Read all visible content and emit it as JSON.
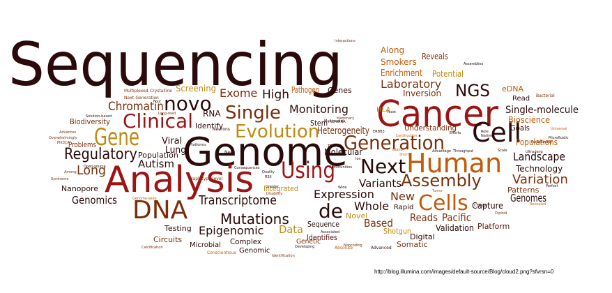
{
  "palette": {
    "dark": "#2a0a0a",
    "crimson": "#9c1515",
    "brown": "#7a2f0a",
    "orange": "#c25a0a",
    "gold": "#c08a12",
    "maroon": "#5a1010"
  },
  "words": [
    {
      "text": "Sequencing",
      "c": "dark"
    },
    {
      "text": "Genome",
      "c": "dark"
    },
    {
      "text": "Cancer",
      "c": "crimson"
    },
    {
      "text": "Analysis",
      "c": "crimson"
    },
    {
      "text": "DNA",
      "c": "brown"
    },
    {
      "text": "Human",
      "c": "orange"
    },
    {
      "text": "Cell",
      "c": "dark"
    },
    {
      "text": "Gene",
      "c": "gold"
    },
    {
      "text": "Next",
      "c": "dark"
    },
    {
      "text": "Using",
      "c": "crimson"
    },
    {
      "text": "Generation",
      "c": "brown"
    },
    {
      "text": "Clinical",
      "c": "crimson"
    },
    {
      "text": "Evolution",
      "c": "gold"
    },
    {
      "text": "Single",
      "c": "brown"
    },
    {
      "text": "Cells",
      "c": "orange"
    },
    {
      "text": "Assembly",
      "c": "brown"
    },
    {
      "text": "novo",
      "c": "dark"
    },
    {
      "text": "de",
      "c": "dark"
    },
    {
      "text": "Regulatory",
      "c": "dark"
    },
    {
      "text": "Mutations",
      "c": "dark"
    },
    {
      "text": "NGS",
      "c": "dark"
    },
    {
      "text": "Chromatin",
      "c": "brown"
    },
    {
      "text": "Exome",
      "c": "brown"
    },
    {
      "text": "High",
      "c": "dark"
    },
    {
      "text": "Laboratory",
      "c": "brown"
    },
    {
      "text": "Variation",
      "c": "brown"
    },
    {
      "text": "Transcriptome",
      "c": "dark"
    },
    {
      "text": "Epigenomic",
      "c": "dark"
    },
    {
      "text": "Landscape",
      "c": "dark"
    },
    {
      "text": "Monitoring",
      "c": "dark"
    },
    {
      "text": "Expression",
      "c": "dark"
    },
    {
      "text": "Whole",
      "c": "dark"
    },
    {
      "text": "Variants",
      "c": "dark"
    },
    {
      "text": "Long",
      "c": "brown"
    },
    {
      "text": "Autism",
      "c": "dark"
    },
    {
      "text": "Genomics",
      "c": "dark"
    },
    {
      "text": "Reads",
      "c": "brown"
    },
    {
      "text": "Pacific",
      "c": "brown"
    },
    {
      "text": "Based",
      "c": "brown"
    },
    {
      "text": "Genomes",
      "c": "dark"
    },
    {
      "text": "Data",
      "c": "gold"
    },
    {
      "text": "New",
      "c": "brown"
    },
    {
      "text": "Heterogeneity",
      "c": "brown"
    },
    {
      "text": "Molecular",
      "c": "dark"
    },
    {
      "text": "Population",
      "c": "dark"
    },
    {
      "text": "Viral",
      "c": "dark"
    },
    {
      "text": "Lung",
      "c": "dark"
    },
    {
      "text": "Single-molecule",
      "c": "dark"
    },
    {
      "text": "Inversion",
      "c": "brown"
    },
    {
      "text": "Enrichment",
      "c": "orange"
    },
    {
      "text": "Smokers",
      "c": "orange"
    },
    {
      "text": "Reveals",
      "c": "brown"
    },
    {
      "text": "Along",
      "c": "orange"
    },
    {
      "text": "Potential",
      "c": "gold"
    },
    {
      "text": "Screening",
      "c": "gold"
    },
    {
      "text": "Pathogen",
      "c": "orange"
    },
    {
      "text": "Genes",
      "c": "dark"
    },
    {
      "text": "RNA",
      "c": "dark"
    },
    {
      "text": "Stem",
      "c": "dark"
    },
    {
      "text": "Identify",
      "c": "dark"
    },
    {
      "text": "Understanding",
      "c": "brown"
    },
    {
      "text": "Bioscience",
      "c": "orange"
    },
    {
      "text": "Populations",
      "c": "orange"
    },
    {
      "text": "Goals",
      "c": "dark"
    },
    {
      "text": "Technology",
      "c": "dark"
    },
    {
      "text": "Patterns",
      "c": "brown"
    },
    {
      "text": "Capture",
      "c": "dark"
    },
    {
      "text": "Platform",
      "c": "maroon"
    },
    {
      "text": "Validation",
      "c": "dark"
    },
    {
      "text": "Digital",
      "c": "dark"
    },
    {
      "text": "Somatic",
      "c": "brown"
    },
    {
      "text": "Shotgun",
      "c": "gold"
    },
    {
      "text": "Novel",
      "c": "gold"
    },
    {
      "text": "Sequence",
      "c": "dark"
    },
    {
      "text": "Identifies",
      "c": "maroon"
    },
    {
      "text": "Genetic",
      "c": "brown"
    },
    {
      "text": "Genomic",
      "c": "dark"
    },
    {
      "text": "Complex",
      "c": "dark"
    },
    {
      "text": "Microbial",
      "c": "dark"
    },
    {
      "text": "Circuits",
      "c": "brown"
    },
    {
      "text": "Testing",
      "c": "dark"
    },
    {
      "text": "Integrated",
      "c": "gold"
    },
    {
      "text": "Rapid",
      "c": "dark"
    },
    {
      "text": "Nanopore",
      "c": "dark"
    },
    {
      "text": "Problems",
      "c": "brown"
    },
    {
      "text": "Biodiversity",
      "c": "brown"
    },
    {
      "text": "Read",
      "c": "dark"
    },
    {
      "text": "eDNA",
      "c": "orange"
    },
    {
      "text": "HLA",
      "c": "gold"
    },
    {
      "text": "Multiplexed",
      "c": "brown"
    },
    {
      "text": "Crystalline",
      "c": "brown"
    },
    {
      "text": "Next-Generation",
      "c": "brown"
    },
    {
      "text": "Four",
      "c": "dark"
    },
    {
      "text": "Solution-based",
      "c": "dark"
    },
    {
      "text": "Long-read",
      "c": "brown"
    },
    {
      "text": "Advances",
      "c": "brown"
    },
    {
      "text": "Overwhelmingly",
      "c": "brown"
    },
    {
      "text": "PIK3CA",
      "c": "brown"
    },
    {
      "text": "Open-source",
      "c": "dark"
    },
    {
      "text": "Among",
      "c": "brown"
    },
    {
      "text": "Syndrome",
      "c": "brown"
    },
    {
      "text": "Genome-wide",
      "c": "orange"
    },
    {
      "text": "Haplotype-level",
      "c": "brown"
    },
    {
      "text": "Consequences",
      "c": "dark"
    },
    {
      "text": "Neurons",
      "c": "dark"
    },
    {
      "text": "Past",
      "c": "dark"
    },
    {
      "text": "Platforms",
      "c": "dark"
    },
    {
      "text": "Near",
      "c": "dark"
    },
    {
      "text": "Quality",
      "c": "dark"
    },
    {
      "text": "RSII",
      "c": "dark"
    },
    {
      "text": "Greater",
      "c": "dark"
    },
    {
      "text": "Disability",
      "c": "brown"
    },
    {
      "text": "microRNA",
      "c": "dark"
    },
    {
      "text": "Mammary",
      "c": "brown"
    },
    {
      "text": "Multimodal",
      "c": "dark"
    },
    {
      "text": "Yeast",
      "c": "dark"
    },
    {
      "text": "ERBB3",
      "c": "dark"
    },
    {
      "text": "TREML4",
      "c": "dark"
    },
    {
      "text": "Ion",
      "c": "dark"
    },
    {
      "text": "Communities",
      "c": "dark"
    },
    {
      "text": "Wide",
      "c": "dark"
    },
    {
      "text": "Gland",
      "c": "orange"
    },
    {
      "text": "Short",
      "c": "orange"
    },
    {
      "text": "Construction",
      "c": "orange"
    },
    {
      "text": "Efforts",
      "c": "dark"
    },
    {
      "text": "Advantage",
      "c": "dark"
    },
    {
      "text": "Throughput",
      "c": "dark"
    },
    {
      "text": "Role",
      "c": "dark"
    },
    {
      "text": "Native",
      "c": "dark"
    },
    {
      "text": "Scale",
      "c": "dark"
    },
    {
      "text": "Ultra-long",
      "c": "dark"
    },
    {
      "text": "Universal",
      "c": "orange"
    },
    {
      "text": "Microfluidic",
      "c": "dark"
    },
    {
      "text": "Functionally",
      "c": "dark"
    },
    {
      "text": "Bacterial",
      "c": "brown"
    },
    {
      "text": "Assemblies",
      "c": "dark"
    },
    {
      "text": "Interactions",
      "c": "brown"
    },
    {
      "text": "Tumor",
      "c": "orange"
    },
    {
      "text": "Perfect",
      "c": "dark"
    },
    {
      "text": "Revealed",
      "c": "orange"
    },
    {
      "text": "Change",
      "c": "dark"
    },
    {
      "text": "Diploid",
      "c": "brown"
    },
    {
      "text": "Associated",
      "c": "dark"
    },
    {
      "text": "Noncoding",
      "c": "brown"
    },
    {
      "text": "Absolute",
      "c": "orange"
    },
    {
      "text": "Advanced",
      "c": "dark"
    },
    {
      "text": "Developing",
      "c": "dark"
    },
    {
      "text": "Identification",
      "c": "brown"
    },
    {
      "text": "Conscientious",
      "c": "orange"
    },
    {
      "text": "Calcification",
      "c": "brown"
    }
  ],
  "credit": "http://blog.illumina.com/images/default-source/Blog/cloud2.png?sfvrsn=0"
}
